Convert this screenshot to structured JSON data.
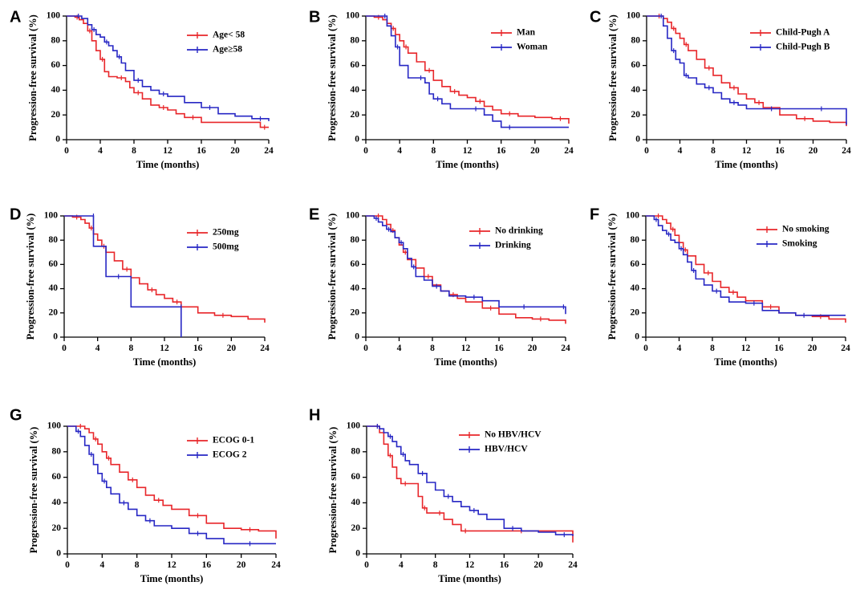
{
  "chart_data": [
    {
      "panel": "A",
      "type": "line",
      "xlabel": "Time (months)",
      "ylabel": "Progression-free survival (%)",
      "xlim": [
        0,
        24
      ],
      "ylim": [
        0,
        100
      ],
      "xticks": [
        0,
        4,
        8,
        12,
        16,
        20,
        24
      ],
      "yticks": [
        0,
        20,
        40,
        60,
        80,
        100
      ],
      "legend_position": "top-right",
      "series": [
        {
          "name": "Age< 58",
          "color": "#e8262a",
          "x": [
            0,
            1,
            1.5,
            2,
            2.5,
            3,
            3.5,
            4,
            4.5,
            5,
            6,
            7,
            7.5,
            8,
            9,
            10,
            11,
            12,
            13,
            14,
            16,
            20,
            23,
            24
          ],
          "y": [
            100,
            99,
            97,
            94,
            88,
            80,
            72,
            65,
            55,
            51,
            50,
            47,
            42,
            38,
            33,
            28,
            26,
            24,
            21,
            18,
            14,
            14,
            10,
            10
          ]
        },
        {
          "name": "Age≥58",
          "color": "#2727c4",
          "x": [
            0,
            1,
            1.8,
            2.5,
            3,
            3.5,
            4,
            4.5,
            5,
            5.5,
            6,
            6.5,
            7,
            8,
            9,
            10,
            11,
            12,
            14,
            16,
            18,
            20,
            22,
            24
          ],
          "y": [
            100,
            100,
            98,
            93,
            89,
            85,
            83,
            79,
            76,
            72,
            67,
            62,
            56,
            48,
            43,
            40,
            37,
            35,
            30,
            26,
            21,
            19,
            17,
            15
          ]
        }
      ]
    },
    {
      "panel": "B",
      "type": "line",
      "xlabel": "Time (months)",
      "ylabel": "Progression-free survival (%)",
      "xlim": [
        0,
        24
      ],
      "ylim": [
        0,
        100
      ],
      "xticks": [
        0,
        4,
        8,
        12,
        16,
        20,
        24
      ],
      "yticks": [
        0,
        20,
        40,
        60,
        80,
        100
      ],
      "legend_position": "top-right",
      "series": [
        {
          "name": "Man",
          "color": "#e8262a",
          "x": [
            0,
            1,
            2,
            2.5,
            3,
            3.5,
            4,
            4.5,
            5,
            6,
            7,
            8,
            9,
            10,
            11,
            12,
            13,
            14,
            15,
            16,
            18,
            20,
            22,
            24
          ],
          "y": [
            100,
            99,
            97,
            94,
            90,
            85,
            80,
            75,
            70,
            63,
            56,
            48,
            43,
            39,
            36,
            34,
            31,
            27,
            24,
            21,
            19,
            18,
            17,
            13
          ]
        },
        {
          "name": "Woman",
          "color": "#2727c4",
          "x": [
            0,
            2,
            2.5,
            3,
            3.5,
            4,
            5,
            6,
            7,
            7.5,
            8,
            9,
            10,
            12,
            14,
            15,
            16,
            18,
            20,
            24
          ],
          "y": [
            100,
            100,
            92,
            84,
            75,
            60,
            50,
            50,
            46,
            37,
            33,
            29,
            25,
            25,
            20,
            15,
            10,
            10,
            10,
            10
          ]
        }
      ]
    },
    {
      "panel": "C",
      "type": "line",
      "xlabel": "Time (months)",
      "ylabel": "Progression-free survival (%)",
      "xlim": [
        0,
        24
      ],
      "ylim": [
        0,
        100
      ],
      "xticks": [
        0,
        4,
        8,
        12,
        16,
        20,
        24
      ],
      "yticks": [
        0,
        20,
        40,
        60,
        80,
        100
      ],
      "legend_position": "top-right",
      "series": [
        {
          "name": "Child-Pugh A",
          "color": "#e8262a",
          "x": [
            0,
            1,
            2,
            2.5,
            3,
            3.5,
            4,
            4.5,
            5,
            6,
            7,
            8,
            9,
            10,
            11,
            12,
            13,
            14,
            16,
            18,
            20,
            22,
            24
          ],
          "y": [
            100,
            100,
            98,
            95,
            90,
            86,
            82,
            77,
            72,
            65,
            58,
            52,
            46,
            42,
            37,
            33,
            30,
            26,
            20,
            17,
            15,
            14,
            11
          ]
        },
        {
          "name": "Child-Pugh B",
          "color": "#2727c4",
          "x": [
            0,
            1.5,
            2,
            2.5,
            3,
            3.5,
            4,
            4.5,
            5,
            6,
            7,
            8,
            9,
            10,
            11,
            12,
            14,
            16,
            18,
            20,
            22,
            23.5,
            24
          ],
          "y": [
            100,
            100,
            92,
            82,
            72,
            65,
            62,
            52,
            50,
            45,
            42,
            38,
            33,
            30,
            28,
            25,
            25,
            25,
            25,
            25,
            25,
            25,
            12
          ]
        }
      ]
    },
    {
      "panel": "D",
      "type": "line",
      "xlabel": "Time (months)",
      "ylabel": "Progression-free survival (%)",
      "xlim": [
        0,
        24
      ],
      "ylim": [
        0,
        100
      ],
      "xticks": [
        0,
        4,
        8,
        12,
        16,
        20,
        24
      ],
      "yticks": [
        0,
        20,
        40,
        60,
        80,
        100
      ],
      "legend_position": "top-right",
      "series": [
        {
          "name": "250mg",
          "color": "#e8262a",
          "x": [
            0,
            1,
            2,
            2.5,
            3,
            3.5,
            4,
            4.5,
            5,
            6,
            7,
            8,
            9,
            10,
            11,
            12,
            13,
            14,
            16,
            18,
            20,
            22,
            24
          ],
          "y": [
            100,
            99,
            97,
            94,
            90,
            85,
            80,
            75,
            70,
            63,
            56,
            49,
            44,
            39,
            35,
            32,
            29,
            25,
            20,
            18,
            17,
            15,
            12
          ]
        },
        {
          "name": "500mg",
          "color": "#2727c4",
          "x": [
            0,
            3.5,
            3.5,
            5,
            5,
            8,
            8,
            14,
            14
          ],
          "y": [
            100,
            100,
            75,
            75,
            50,
            50,
            25,
            25,
            0
          ]
        }
      ]
    },
    {
      "panel": "E",
      "type": "line",
      "xlabel": "Time (months)",
      "ylabel": "Progression-free survival (%)",
      "xlim": [
        0,
        24
      ],
      "ylim": [
        0,
        100
      ],
      "xticks": [
        0,
        4,
        8,
        12,
        16,
        20,
        24
      ],
      "yticks": [
        0,
        20,
        40,
        60,
        80,
        100
      ],
      "legend_position": "top-right",
      "series": [
        {
          "name": "No drinking",
          "color": "#e8262a",
          "x": [
            0,
            1,
            2,
            2.5,
            3,
            3.5,
            4,
            4.5,
            5,
            6,
            7,
            8,
            9,
            10,
            11,
            12,
            14,
            16,
            18,
            20,
            22,
            24
          ],
          "y": [
            100,
            100,
            97,
            93,
            88,
            82,
            76,
            70,
            64,
            57,
            50,
            43,
            38,
            35,
            32,
            29,
            24,
            19,
            16,
            15,
            14,
            11
          ]
        },
        {
          "name": "Drinking",
          "color": "#2727c4",
          "x": [
            0,
            1,
            1.5,
            2,
            2.5,
            3,
            3.5,
            4,
            4.5,
            5,
            5.5,
            6,
            7,
            8,
            9,
            10,
            12,
            14,
            16,
            18,
            20,
            22,
            23.5,
            24
          ],
          "y": [
            100,
            98,
            95,
            92,
            89,
            87,
            82,
            78,
            73,
            65,
            58,
            50,
            47,
            42,
            38,
            34,
            33,
            30,
            25,
            25,
            25,
            25,
            25,
            19
          ]
        }
      ]
    },
    {
      "panel": "F",
      "type": "line",
      "xlabel": "Time (months)",
      "ylabel": "Progression-free survival (%)",
      "xlim": [
        0,
        24
      ],
      "ylim": [
        0,
        100
      ],
      "xticks": [
        0,
        4,
        8,
        12,
        16,
        20,
        24
      ],
      "yticks": [
        0,
        20,
        40,
        60,
        80,
        100
      ],
      "legend_position": "top-right",
      "series": [
        {
          "name": "No smoking",
          "color": "#e8262a",
          "x": [
            0,
            1,
            2,
            2.5,
            3,
            3.5,
            4,
            4.5,
            5,
            6,
            7,
            8,
            9,
            10,
            11,
            12,
            14,
            16,
            18,
            20,
            22,
            24
          ],
          "y": [
            100,
            100,
            97,
            94,
            89,
            84,
            78,
            72,
            67,
            60,
            53,
            46,
            41,
            37,
            33,
            30,
            25,
            20,
            18,
            17,
            15,
            12
          ]
        },
        {
          "name": "Smoking",
          "color": "#2727c4",
          "x": [
            0,
            1,
            1.5,
            2,
            2.5,
            3,
            3.5,
            4,
            4.5,
            5,
            5.5,
            6,
            7,
            8,
            9,
            10,
            12,
            14,
            16,
            18,
            20,
            22,
            24
          ],
          "y": [
            100,
            97,
            92,
            88,
            85,
            80,
            78,
            73,
            68,
            62,
            55,
            48,
            43,
            38,
            33,
            29,
            28,
            22,
            20,
            18,
            18,
            18,
            18
          ]
        }
      ]
    },
    {
      "panel": "G",
      "type": "line",
      "xlabel": "Time (months)",
      "ylabel": "Progression-free survival (%)",
      "xlim": [
        0,
        24
      ],
      "ylim": [
        0,
        100
      ],
      "xticks": [
        0,
        4,
        8,
        12,
        16,
        20,
        24
      ],
      "yticks": [
        0,
        20,
        40,
        60,
        80,
        100
      ],
      "legend_position": "top-right",
      "series": [
        {
          "name": "ECOG 0-1",
          "color": "#e8262a",
          "x": [
            0,
            1,
            2,
            2.5,
            3,
            3.5,
            4,
            4.5,
            5,
            6,
            7,
            8,
            9,
            10,
            11,
            12,
            14,
            16,
            18,
            20,
            22,
            24
          ],
          "y": [
            100,
            100,
            98,
            95,
            90,
            86,
            80,
            75,
            70,
            64,
            58,
            52,
            46,
            42,
            38,
            35,
            30,
            24,
            20,
            19,
            18,
            12
          ]
        },
        {
          "name": "ECOG 2",
          "color": "#2727c4",
          "x": [
            0,
            1,
            1.5,
            2,
            2.5,
            3,
            3.5,
            4,
            4.5,
            5,
            6,
            7,
            8,
            9,
            10,
            12,
            14,
            16,
            18,
            20,
            22,
            24
          ],
          "y": [
            100,
            96,
            92,
            85,
            78,
            70,
            63,
            57,
            52,
            47,
            40,
            35,
            30,
            26,
            22,
            20,
            16,
            12,
            8,
            8,
            8,
            8
          ]
        }
      ]
    },
    {
      "panel": "H",
      "type": "line",
      "xlabel": "Time (months)",
      "ylabel": "Progression-free survival (%)",
      "xlim": [
        0,
        24
      ],
      "ylim": [
        0,
        100
      ],
      "xticks": [
        0,
        4,
        8,
        12,
        16,
        20,
        24
      ],
      "yticks": [
        0,
        20,
        40,
        60,
        80,
        100
      ],
      "legend_position": "top-right",
      "series": [
        {
          "name": "No HBV/HCV",
          "color": "#e8262a",
          "x": [
            0,
            1,
            1.5,
            2,
            2.5,
            3,
            3.5,
            4,
            5,
            6,
            6.5,
            7,
            7.5,
            8,
            9,
            10,
            11,
            12,
            14,
            16,
            20,
            23.5,
            24
          ],
          "y": [
            100,
            100,
            95,
            86,
            77,
            68,
            59,
            55,
            55,
            45,
            36,
            32,
            32,
            32,
            27,
            23,
            18,
            18,
            18,
            18,
            18,
            18,
            9
          ]
        },
        {
          "name": "HBV/HCV",
          "color": "#2727c4",
          "x": [
            0,
            1,
            1.5,
            2,
            2.5,
            3,
            3.5,
            4,
            4.5,
            5,
            6,
            7,
            8,
            9,
            10,
            11,
            12,
            13,
            14,
            16,
            18,
            20,
            22,
            24
          ],
          "y": [
            100,
            100,
            98,
            95,
            92,
            88,
            84,
            78,
            73,
            70,
            63,
            56,
            50,
            45,
            41,
            37,
            34,
            31,
            27,
            20,
            18,
            17,
            15,
            14
          ]
        }
      ]
    }
  ]
}
